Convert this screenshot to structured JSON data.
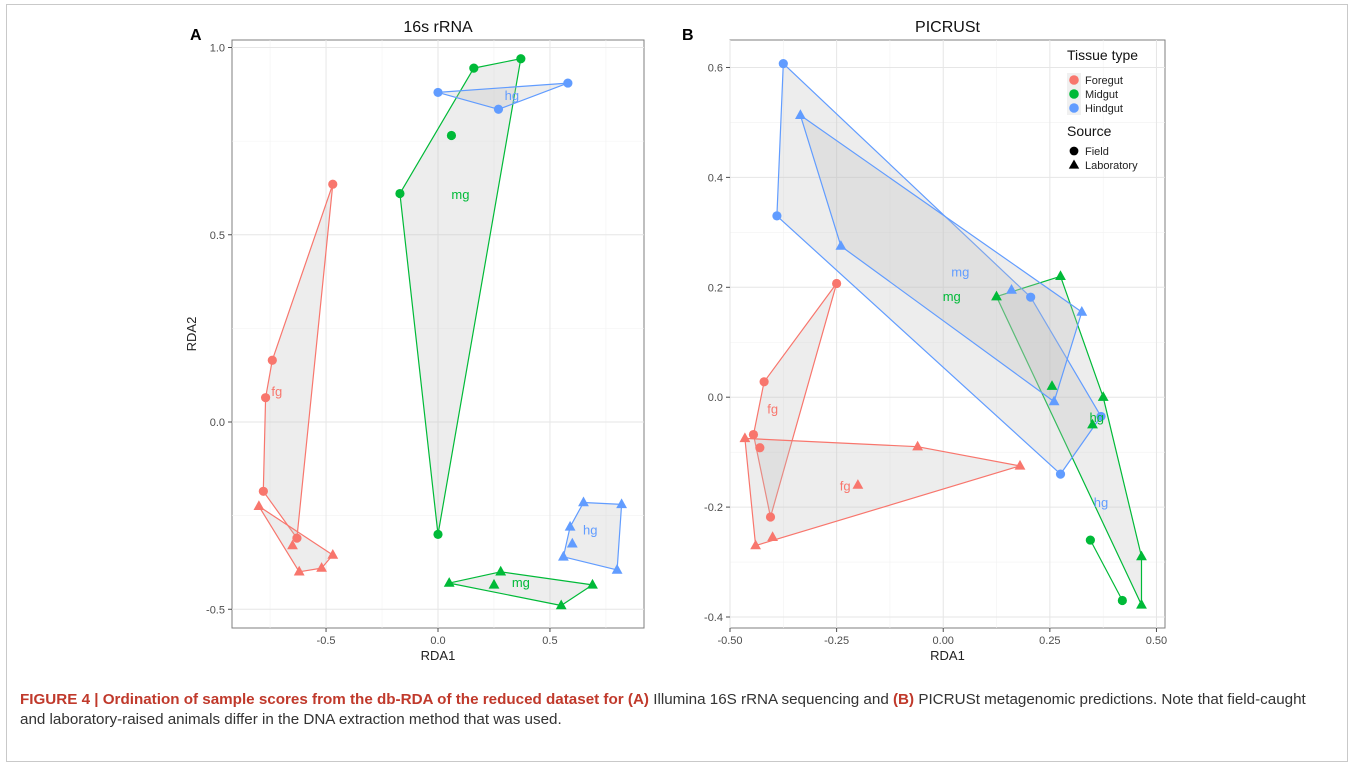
{
  "colors": {
    "foregut": "#f8766d",
    "midgut": "#00ba38",
    "hindgut": "#619cff"
  },
  "chart_data": [
    {
      "type": "scatter",
      "panel": "A",
      "title": "16s rRNA",
      "xlabel": "RDA1",
      "ylabel": "RDA2",
      "xlim": [
        -0.92,
        0.92
      ],
      "ylim": [
        -0.55,
        1.02
      ],
      "xticks": [
        -0.5,
        0.0,
        0.5
      ],
      "xtick_labels": [
        "-0.5",
        "0.0",
        "0.5"
      ],
      "yticks": [
        -0.5,
        0.0,
        0.5,
        1.0
      ],
      "ytick_labels": [
        "-0.5",
        "0.0",
        "0.5",
        "1.0"
      ],
      "series": [
        {
          "name": "Foregut",
          "source": "Field",
          "label": "fg",
          "label_pos": [
            -0.72,
            0.07
          ],
          "points": [
            [
              -0.47,
              0.635
            ],
            [
              -0.74,
              0.165
            ],
            [
              -0.77,
              0.065
            ],
            [
              -0.78,
              -0.185
            ],
            [
              -0.63,
              -0.31
            ]
          ]
        },
        {
          "name": "Foregut",
          "source": "Laboratory",
          "label": "",
          "label_pos": [
            -0.64,
            -0.31
          ],
          "points": [
            [
              -0.8,
              -0.225
            ],
            [
              -0.65,
              -0.33
            ],
            [
              -0.62,
              -0.4
            ],
            [
              -0.52,
              -0.39
            ],
            [
              -0.47,
              -0.355
            ]
          ]
        },
        {
          "name": "Midgut",
          "source": "Field",
          "label": "mg",
          "label_pos": [
            0.1,
            0.595
          ],
          "points": [
            [
              -0.17,
              0.61
            ],
            [
              0.0,
              -0.3
            ],
            [
              0.06,
              0.765
            ],
            [
              0.16,
              0.945
            ],
            [
              0.37,
              0.97
            ]
          ]
        },
        {
          "name": "Midgut",
          "source": "Laboratory",
          "label": "mg",
          "label_pos": [
            0.37,
            -0.44
          ],
          "points": [
            [
              0.05,
              -0.43
            ],
            [
              0.25,
              -0.435
            ],
            [
              0.28,
              -0.4
            ],
            [
              0.55,
              -0.49
            ],
            [
              0.69,
              -0.435
            ]
          ]
        },
        {
          "name": "Hindgut",
          "source": "Field",
          "label": "hg",
          "label_pos": [
            0.33,
            0.86
          ],
          "points": [
            [
              0.0,
              0.88
            ],
            [
              0.27,
              0.835
            ],
            [
              0.58,
              0.905
            ]
          ]
        },
        {
          "name": "Hindgut",
          "source": "Laboratory",
          "label": "hg",
          "label_pos": [
            0.68,
            -0.3
          ],
          "points": [
            [
              0.56,
              -0.36
            ],
            [
              0.59,
              -0.28
            ],
            [
              0.6,
              -0.325
            ],
            [
              0.65,
              -0.215
            ],
            [
              0.82,
              -0.22
            ],
            [
              0.8,
              -0.395
            ]
          ]
        }
      ]
    },
    {
      "type": "scatter",
      "panel": "B",
      "title": "PICRUSt",
      "xlabel": "RDA1",
      "ylabel": "",
      "xlim": [
        -0.5,
        0.52
      ],
      "ylim": [
        -0.42,
        0.65
      ],
      "xticks": [
        -0.5,
        -0.25,
        0.0,
        0.25,
        0.5
      ],
      "xtick_labels": [
        "-0.50",
        "-0.25",
        "0.00",
        "0.25",
        "0.50"
      ],
      "yticks": [
        -0.4,
        -0.2,
        0.0,
        0.2,
        0.4,
        0.6
      ],
      "ytick_labels": [
        "-0.4",
        "-0.2",
        "0.0",
        "0.2",
        "0.4",
        "0.6"
      ],
      "series": [
        {
          "name": "Foregut",
          "source": "Field",
          "label": "fg",
          "label_pos": [
            -0.4,
            -0.03
          ],
          "points": [
            [
              -0.25,
              0.207
            ],
            [
              -0.42,
              0.028
            ],
            [
              -0.445,
              -0.068
            ],
            [
              -0.43,
              -0.092
            ],
            [
              -0.405,
              -0.218
            ]
          ]
        },
        {
          "name": "Foregut",
          "source": "Laboratory",
          "label": "fg",
          "label_pos": [
            -0.23,
            -0.17
          ],
          "points": [
            [
              -0.465,
              -0.075
            ],
            [
              -0.44,
              -0.27
            ],
            [
              -0.4,
              -0.255
            ],
            [
              -0.2,
              -0.16
            ],
            [
              -0.06,
              -0.09
            ],
            [
              0.18,
              -0.125
            ]
          ]
        },
        {
          "name": "Midgut",
          "source": "Field",
          "label": "mg",
          "label_pos": [
            0.02,
            0.175
          ],
          "points": [
            [
              0.345,
              -0.26
            ],
            [
              0.42,
              -0.37
            ]
          ]
        },
        {
          "name": "Midgut",
          "source": "Laboratory",
          "label": "hg",
          "label_pos": [
            0.36,
            -0.045
          ],
          "points": [
            [
              0.125,
              0.183
            ],
            [
              0.275,
              0.22
            ],
            [
              0.255,
              0.02
            ],
            [
              0.375,
              0.0
            ],
            [
              0.35,
              -0.05
            ],
            [
              0.465,
              -0.29
            ],
            [
              0.465,
              -0.378
            ]
          ]
        },
        {
          "name": "Hindgut",
          "source": "Field",
          "label": "hg",
          "label_pos": [
            0.37,
            -0.2
          ],
          "points": [
            [
              -0.375,
              0.607
            ],
            [
              -0.39,
              0.33
            ],
            [
              0.205,
              0.182
            ],
            [
              0.37,
              -0.035
            ],
            [
              0.275,
              -0.14
            ]
          ]
        },
        {
          "name": "Hindgut",
          "source": "Laboratory",
          "label": "mg",
          "label_pos": [
            0.04,
            0.22
          ],
          "points": [
            [
              -0.335,
              0.513
            ],
            [
              -0.24,
              0.275
            ],
            [
              0.16,
              0.195
            ],
            [
              0.325,
              0.155
            ],
            [
              0.26,
              -0.008
            ]
          ]
        }
      ],
      "legend": {
        "position": "top-right",
        "tissue_title": "Tissue type",
        "tissue_items": [
          "Foregut",
          "Midgut",
          "Hindgut"
        ],
        "source_title": "Source",
        "source_items": [
          "Field",
          "Laboratory"
        ]
      }
    }
  ],
  "caption": {
    "bold_lead": "FIGURE 4 | Ordination of sample scores from the db-RDA of the reduced dataset for ",
    "bold_a": "(A)",
    "text_a": " Illumina 16S rRNA sequencing and ",
    "bold_b": "(B)",
    "text_b": " PICRUSt metagenomic predictions. Note that field-caught and laboratory-raised animals differ in the DNA extraction method that was used."
  }
}
